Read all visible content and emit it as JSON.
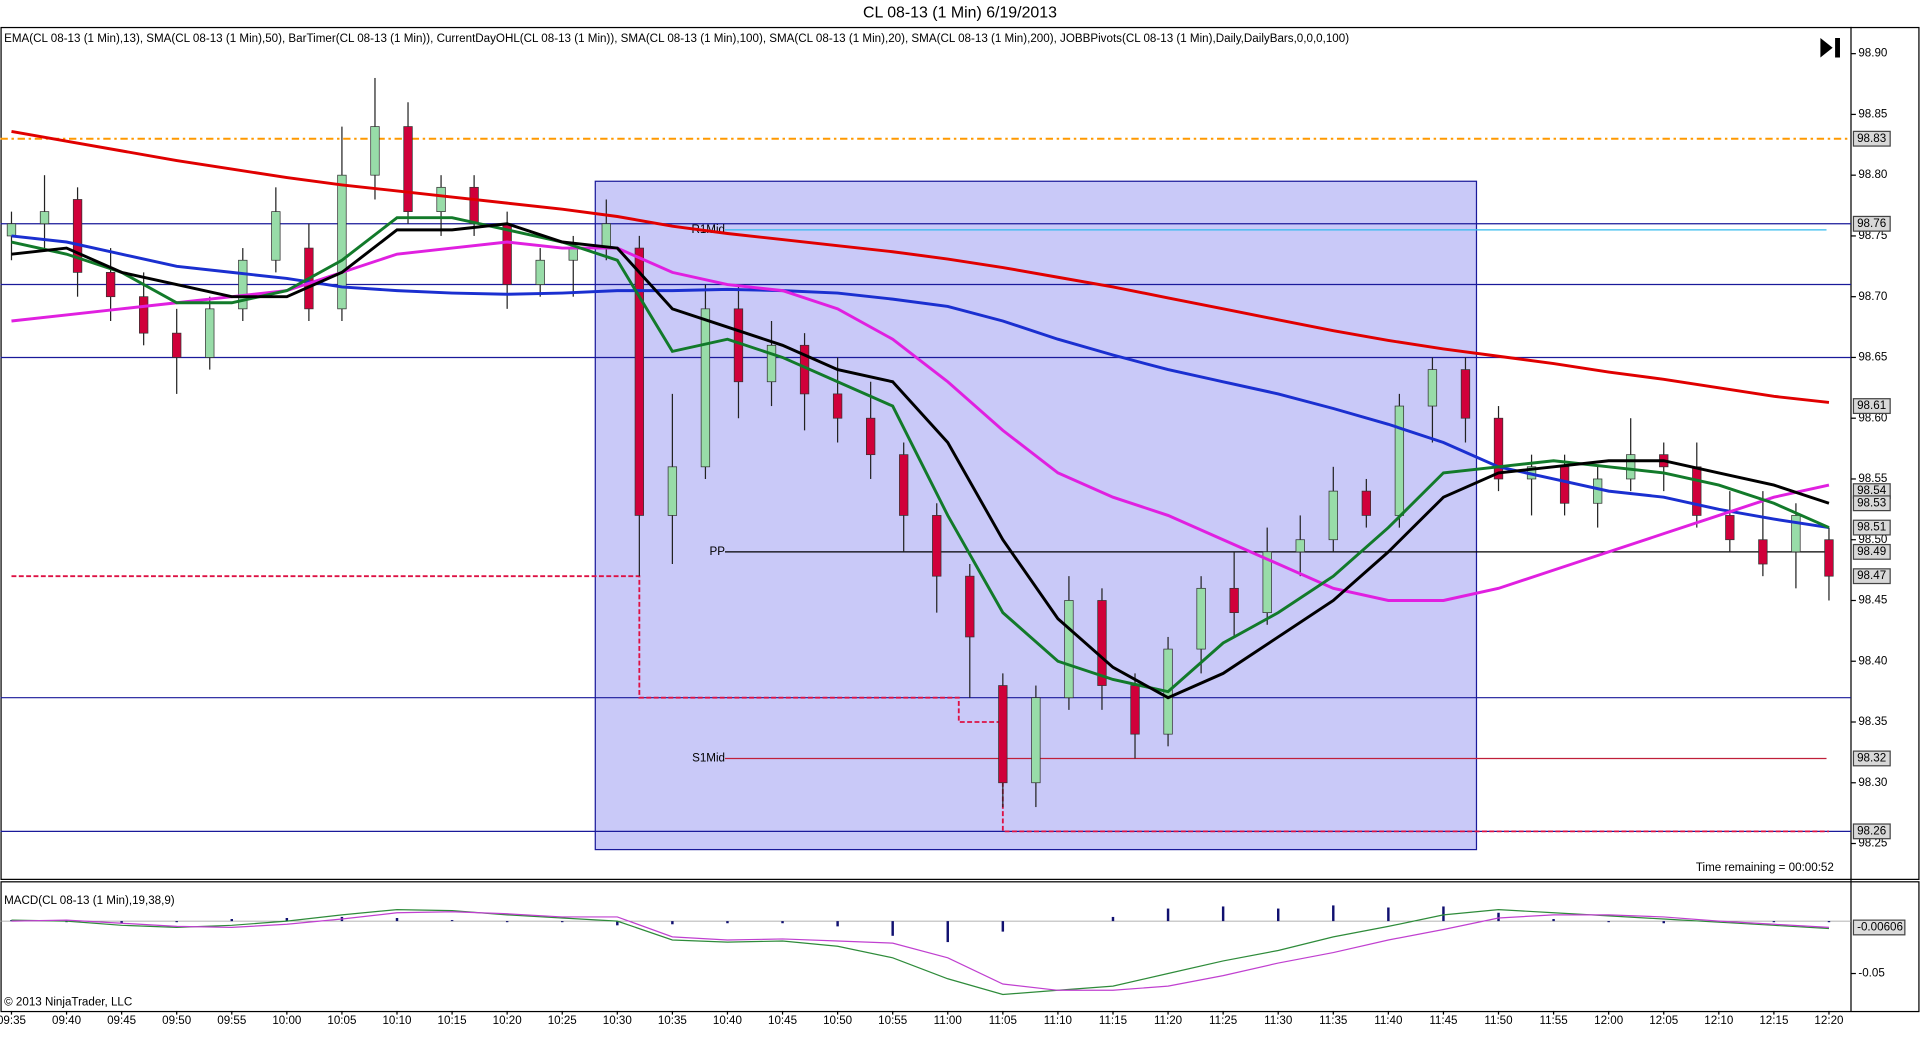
{
  "chart_data": [
    {
      "type": "candlestick",
      "title": "CL 08-13 (1 Min)  6/19/2013",
      "subtitle": "EMA(CL 08-13 (1 Min),13), SMA(CL 08-13 (1 Min),50), BarTimer(CL 08-13 (1 Min)), CurrentDayOHL(CL 08-13 (1 Min)), SMA(CL 08-13 (1 Min),100), SMA(CL 08-13 (1 Min),20), SMA(CL 08-13 (1 Min),200), JOBBPivots(CL 08-13 (1 Min),Daily,DailyBars,0,0,0,100)",
      "annotation": "Time remaining = 00:00:52",
      "xlim": [
        "09:34",
        "12:22"
      ],
      "ylim": [
        98.221,
        98.922
      ],
      "yticks": [
        {
          "value": 98.9,
          "label": "98.90"
        },
        98.85,
        {
          "value": 98.8,
          "label": "98.80"
        },
        98.75,
        {
          "value": 98.7,
          "label": "98.70"
        },
        98.65,
        {
          "value": 98.6,
          "label": "98.60"
        },
        98.55,
        {
          "value": 98.5,
          "label": "98.50"
        },
        98.45,
        {
          "value": 98.4,
          "label": "98.40"
        },
        98.35,
        {
          "value": 98.3,
          "label": "98.30"
        },
        98.25
      ],
      "categories": [
        "09:35",
        "09:40",
        "09:45",
        "09:50",
        "09:55",
        "10:00",
        "10:05",
        "10:10",
        "10:15",
        "10:20",
        "10:25",
        "10:30",
        "10:35",
        "10:40",
        "10:45",
        "10:50",
        "10:55",
        "11:00",
        "11:05",
        "11:10",
        "11:15",
        "11:20",
        "11:25",
        "11:30",
        "11:35",
        "11:40",
        "11:45",
        "11:50",
        "11:55",
        "12:00",
        "12:05",
        "12:10",
        "12:15",
        "12:20"
      ],
      "candles": {
        "x": [
          "09:35",
          "09:38",
          "09:41",
          "09:44",
          "09:47",
          "09:50",
          "09:53",
          "09:56",
          "09:59",
          "10:02",
          "10:05",
          "10:08",
          "10:11",
          "10:14",
          "10:17",
          "10:20",
          "10:23",
          "10:26",
          "10:29",
          "10:32",
          "10:35",
          "10:38",
          "10:41",
          "10:44",
          "10:47",
          "10:50",
          "10:53",
          "10:56",
          "10:59",
          "11:02",
          "11:05",
          "11:08",
          "11:11",
          "11:14",
          "11:17",
          "11:20",
          "11:23",
          "11:26",
          "11:29",
          "11:32",
          "11:35",
          "11:38",
          "11:41",
          "11:44",
          "11:47",
          "11:50",
          "11:53",
          "11:56",
          "11:59",
          "12:02",
          "12:05",
          "12:08",
          "12:11",
          "12:14",
          "12:17",
          "12:20"
        ],
        "open": [
          98.75,
          98.76,
          98.78,
          98.72,
          98.7,
          98.67,
          98.65,
          98.69,
          98.73,
          98.74,
          98.69,
          98.8,
          98.84,
          98.77,
          98.79,
          98.76,
          98.71,
          98.73,
          98.74,
          98.74,
          98.52,
          98.56,
          98.69,
          98.63,
          98.66,
          98.62,
          98.6,
          98.57,
          98.52,
          98.47,
          98.38,
          98.3,
          98.37,
          98.45,
          98.38,
          98.34,
          98.41,
          98.46,
          98.44,
          98.49,
          98.5,
          98.54,
          98.52,
          98.61,
          98.64,
          98.6,
          98.55,
          98.56,
          98.53,
          98.55,
          98.57,
          98.56,
          98.52,
          98.5,
          98.49,
          98.5
        ],
        "high": [
          98.77,
          98.8,
          98.79,
          98.74,
          98.72,
          98.69,
          98.7,
          98.74,
          98.79,
          98.76,
          98.84,
          98.88,
          98.86,
          98.8,
          98.8,
          98.77,
          98.74,
          98.75,
          98.78,
          98.75,
          98.62,
          98.71,
          98.71,
          98.68,
          98.67,
          98.65,
          98.63,
          98.58,
          98.53,
          98.48,
          98.39,
          98.38,
          98.47,
          98.46,
          98.39,
          98.42,
          98.47,
          98.49,
          98.51,
          98.52,
          98.56,
          98.55,
          98.62,
          98.65,
          98.65,
          98.61,
          98.57,
          98.57,
          98.56,
          98.6,
          98.58,
          98.58,
          98.54,
          98.54,
          98.53,
          98.51
        ],
        "low": [
          98.73,
          98.74,
          98.7,
          98.68,
          98.66,
          98.62,
          98.64,
          98.68,
          98.72,
          98.68,
          98.68,
          98.78,
          98.76,
          98.75,
          98.75,
          98.69,
          98.7,
          98.7,
          98.73,
          98.47,
          98.48,
          98.55,
          98.6,
          98.61,
          98.59,
          98.58,
          98.55,
          98.49,
          98.44,
          98.37,
          98.28,
          98.28,
          98.36,
          98.36,
          98.32,
          98.33,
          98.39,
          98.42,
          98.43,
          98.47,
          98.49,
          98.51,
          98.51,
          98.58,
          98.58,
          98.54,
          98.52,
          98.52,
          98.51,
          98.54,
          98.54,
          98.51,
          98.49,
          98.47,
          98.46,
          98.45
        ],
        "close": [
          98.76,
          98.77,
          98.72,
          98.7,
          98.67,
          98.65,
          98.69,
          98.73,
          98.77,
          98.69,
          98.8,
          98.84,
          98.77,
          98.79,
          98.76,
          98.71,
          98.73,
          98.74,
          98.76,
          98.52,
          98.56,
          98.69,
          98.63,
          98.66,
          98.62,
          98.6,
          98.57,
          98.52,
          98.47,
          98.42,
          98.3,
          98.37,
          98.45,
          98.38,
          98.34,
          98.41,
          98.46,
          98.44,
          98.49,
          98.5,
          98.54,
          98.52,
          98.61,
          98.64,
          98.6,
          98.55,
          98.56,
          98.53,
          98.55,
          98.57,
          98.56,
          98.52,
          98.5,
          98.48,
          98.52,
          98.47
        ],
        "up_color": "#98dca8",
        "down_color": "#d0003a"
      },
      "series": [
        {
          "color": "#e00000",
          "values": [
            98.836,
            98.828,
            98.82,
            98.812,
            98.805,
            98.798,
            98.792,
            98.787,
            98.782,
            98.777,
            98.772,
            98.766,
            98.758,
            98.752,
            98.747,
            98.742,
            98.737,
            98.731,
            98.724,
            98.716,
            98.708,
            98.699,
            98.69,
            98.681,
            98.672,
            98.664,
            98.657,
            98.651,
            98.645,
            98.638,
            98.632,
            98.625,
            98.618,
            98.613
          ]
        },
        {
          "color": "#1a2fd0",
          "values": [
            98.75,
            98.745,
            98.735,
            98.725,
            98.72,
            98.715,
            98.708,
            98.705,
            98.703,
            98.702,
            98.703,
            98.705,
            98.705,
            98.706,
            98.705,
            98.703,
            98.698,
            98.692,
            98.68,
            98.665,
            98.652,
            98.64,
            98.63,
            98.62,
            98.608,
            98.595,
            98.58,
            98.56,
            98.55,
            98.54,
            98.535,
            98.525,
            98.517,
            98.51
          ]
        },
        {
          "color": "#e020e0",
          "values": [
            98.68,
            98.685,
            98.69,
            98.695,
            98.7,
            98.705,
            98.72,
            98.735,
            98.74,
            98.745,
            98.74,
            98.74,
            98.72,
            98.71,
            98.705,
            98.69,
            98.665,
            98.63,
            98.59,
            98.555,
            98.535,
            98.52,
            98.5,
            98.48,
            98.46,
            98.45,
            98.45,
            98.46,
            98.475,
            98.49,
            98.505,
            98.52,
            98.535,
            98.545
          ]
        },
        {
          "color": "#127a2a",
          "values": [
            98.745,
            98.735,
            98.72,
            98.695,
            98.695,
            98.705,
            98.73,
            98.765,
            98.765,
            98.755,
            98.745,
            98.73,
            98.655,
            98.665,
            98.65,
            98.63,
            98.61,
            98.52,
            98.44,
            98.4,
            98.385,
            98.375,
            98.415,
            98.44,
            98.47,
            98.51,
            98.555,
            98.56,
            98.565,
            98.56,
            98.555,
            98.545,
            98.53,
            98.51
          ]
        },
        {
          "color": "#000000",
          "values": [
            98.735,
            98.74,
            98.72,
            98.71,
            98.7,
            98.7,
            98.72,
            98.755,
            98.755,
            98.76,
            98.745,
            98.74,
            98.69,
            98.675,
            98.66,
            98.64,
            98.63,
            98.58,
            98.5,
            98.435,
            98.395,
            98.37,
            98.39,
            98.42,
            98.45,
            98.49,
            98.535,
            98.555,
            98.56,
            98.565,
            98.565,
            98.555,
            98.545,
            98.53
          ]
        }
      ],
      "levels": [
        {
          "value": 98.83,
          "color": "#ff9900"
        },
        {
          "value": 98.76,
          "color": "#1a1a9a"
        },
        {
          "value": 98.71,
          "color": "#1a1a9a"
        },
        {
          "value": 98.65,
          "color": "#1a1a9a"
        },
        {
          "value": 98.37,
          "color": "#1a1a9a"
        },
        {
          "value": 98.26,
          "color": "#1a1a9a"
        },
        {
          "value": 98.755,
          "color": "#33bbee",
          "label": "R1Mid"
        },
        {
          "value": 98.49,
          "color": "#000000",
          "label": "PP"
        },
        {
          "value": 98.32,
          "color": "#c0203a",
          "label": "S1Mid"
        }
      ],
      "day_low": {
        "x": [
          "09:35",
          "10:32",
          "10:32",
          "11:01",
          "11:01",
          "11:05",
          "11:05",
          "12:20"
        ],
        "values": [
          98.47,
          98.47,
          98.37,
          98.37,
          98.35,
          98.35,
          98.26,
          98.26
        ],
        "color": "#dd1144"
      },
      "region": {
        "x": [
          "10:28",
          "11:48"
        ],
        "values": [
          98.795,
          98.245
        ],
        "color": "#8888f0"
      },
      "price_markers": [
        98.83,
        98.76,
        98.61,
        98.54,
        98.53,
        98.51,
        98.49,
        98.47,
        98.32,
        98.26
      ]
    },
    {
      "type": "macd",
      "title": "MACD(CL 08-13 (1 Min),19,38,9)",
      "footer": "© 2013 NinjaTrader, LLC",
      "ylim": [
        -0.0857,
        0.0381
      ],
      "yticks": [
        -0.05
      ],
      "zero": 0,
      "series": [
        {
          "color": "#2e8b3a",
          "values": [
            0.001,
            0.0,
            -0.004,
            -0.006,
            -0.004,
            0.0,
            0.006,
            0.011,
            0.01,
            0.006,
            0.003,
            0.0,
            -0.018,
            -0.02,
            -0.019,
            -0.024,
            -0.035,
            -0.055,
            -0.07,
            -0.066,
            -0.062,
            -0.05,
            -0.038,
            -0.028,
            -0.015,
            -0.005,
            0.006,
            0.011,
            0.008,
            0.005,
            0.002,
            -0.001,
            -0.004,
            -0.007
          ]
        },
        {
          "color": "#c040d0",
          "values": [
            0.0,
            0.001,
            -0.002,
            -0.005,
            -0.006,
            -0.003,
            0.002,
            0.008,
            0.009,
            0.007,
            0.004,
            0.004,
            -0.015,
            -0.018,
            -0.017,
            -0.019,
            -0.021,
            -0.035,
            -0.06,
            -0.066,
            -0.066,
            -0.062,
            -0.052,
            -0.04,
            -0.03,
            -0.018,
            -0.008,
            0.003,
            0.006,
            0.006,
            0.004,
            0.0,
            -0.003,
            -0.006
          ]
        }
      ],
      "histogram": {
        "color": "#101070",
        "values": [
          0.001,
          -0.001,
          -0.002,
          -0.001,
          0.002,
          0.003,
          0.004,
          0.003,
          0.001,
          -0.001,
          -0.001,
          -0.004,
          -0.003,
          -0.002,
          -0.002,
          -0.005,
          -0.014,
          -0.02,
          -0.01,
          0.0,
          0.004,
          0.012,
          0.014,
          0.012,
          0.015,
          0.013,
          0.014,
          0.008,
          0.002,
          -0.001,
          -0.002,
          -0.001,
          -0.001,
          -0.001
        ]
      },
      "current_value": -0.00606
    }
  ]
}
